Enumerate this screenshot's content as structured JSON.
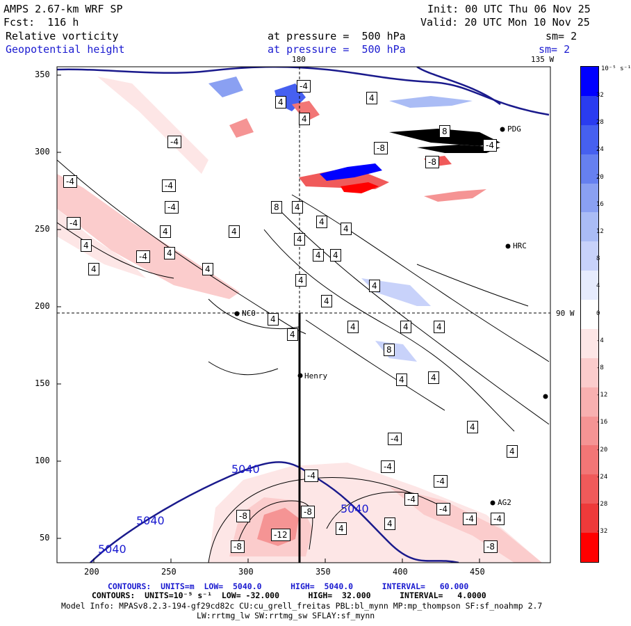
{
  "header": {
    "model": "AMPS 2.67-km WRF SP",
    "fcst": "Fcst:  116 h",
    "init": "Init: 00 UTC Thu 06 Nov 25",
    "valid": "Valid: 20 UTC Mon 10 Nov 25",
    "field1": "Relative vorticity",
    "field1_level": "at pressure =  500 hPa",
    "field1_sm": "sm= 2",
    "field2": "Geopotential height",
    "field2_level": "at pressure =  500 hPa",
    "field2_sm": "sm= 2"
  },
  "map": {
    "lon_labels": [
      "180",
      "135 W",
      "90 W"
    ],
    "stations": [
      "NCO",
      "Henry",
      "HRC",
      "PDG",
      "AG2"
    ],
    "height_contour_labels": [
      "5040",
      "5040",
      "5040",
      "5040"
    ],
    "vort_labels_pos": [
      "4",
      "8"
    ],
    "vort_labels_neg": [
      "-4",
      "-8",
      "-12"
    ]
  },
  "axes": {
    "x_ticks": [
      "200",
      "250",
      "300",
      "350",
      "400",
      "450"
    ],
    "y_ticks": [
      "350",
      "300",
      "250",
      "200",
      "150",
      "100",
      "50"
    ]
  },
  "colorbar": {
    "units": "10⁻⁵ s⁻¹",
    "levels": [
      "32",
      "28",
      "24",
      "20",
      "16",
      "12",
      "8",
      "4",
      "0",
      "-4",
      "-8",
      "-12",
      "-16",
      "-20",
      "-24",
      "-28",
      "-32"
    ],
    "colors": [
      "#0000ff",
      "#2a3cf0",
      "#4660f0",
      "#6680f0",
      "#8aa0f2",
      "#aabcf5",
      "#c8d2fa",
      "#e6ebfd",
      "#ffffff",
      "#fde6e6",
      "#fbcccc",
      "#f8b0b0",
      "#f59494",
      "#f27676",
      "#f05a5a",
      "#ee3a3a",
      "#ff0000"
    ]
  },
  "footer": {
    "contours1": "CONTOURS:  UNITS=m  LOW=  5040.0      HIGH=  5040.0      INTERVAL=   60.000",
    "contours2": "CONTOURS:  UNITS=10⁻⁵ s⁻¹  LOW= -32.000      HIGH=  32.000      INTERVAL=   4.0000",
    "model_info": "Model Info: MPASv8.2.3-194-gf29cd82c CU:cu_grell_freitas PBL:bl_mynn MP:mp_thompson SF:sf_noahmp 2.7",
    "model_info2": "LW:rrtmg_lw SW:rrtmg_sw SFLAY:sf_mynn"
  }
}
